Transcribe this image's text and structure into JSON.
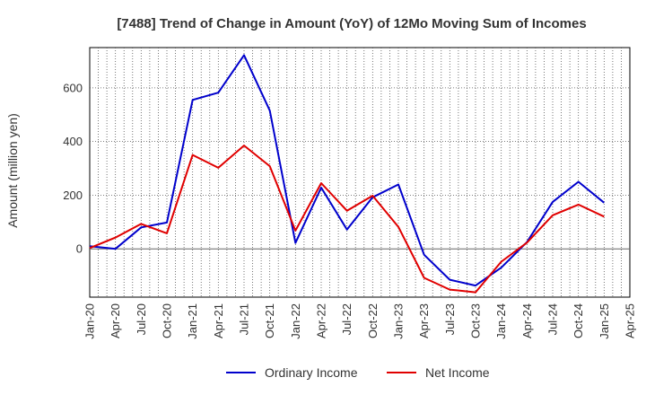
{
  "chart_data": {
    "type": "line",
    "title": "[7488]  Trend of Change in Amount (YoY) of 12Mo Moving Sum of Incomes",
    "ylabel": "Amount (million yen)",
    "xlabel": "",
    "ylim": [
      -180,
      750
    ],
    "yticks": [
      0,
      200,
      400,
      600
    ],
    "x_tick_labels": [
      "Jan-20",
      "Apr-20",
      "Jul-20",
      "Oct-20",
      "Jan-21",
      "Apr-21",
      "Jul-21",
      "Oct-21",
      "Jan-22",
      "Apr-22",
      "Jul-22",
      "Oct-22",
      "Jan-23",
      "Apr-23",
      "Jul-23",
      "Oct-23",
      "Jan-24",
      "Apr-24",
      "Jul-24",
      "Oct-24",
      "Jan-25",
      "Apr-25"
    ],
    "grid": true,
    "legend_position": "bottom",
    "series": [
      {
        "name": "Ordinary Income",
        "color": "#0000cc",
        "values": [
          10,
          0,
          80,
          98,
          555,
          582,
          722,
          515,
          22,
          228,
          72,
          192,
          240,
          -22,
          -115,
          -137,
          -70,
          25,
          175,
          250,
          172
        ]
      },
      {
        "name": "Net Income",
        "color": "#e00000",
        "values": [
          3,
          42,
          93,
          58,
          350,
          302,
          385,
          308,
          68,
          245,
          142,
          198,
          82,
          -108,
          -152,
          -162,
          -48,
          23,
          125,
          165,
          120
        ]
      }
    ]
  }
}
